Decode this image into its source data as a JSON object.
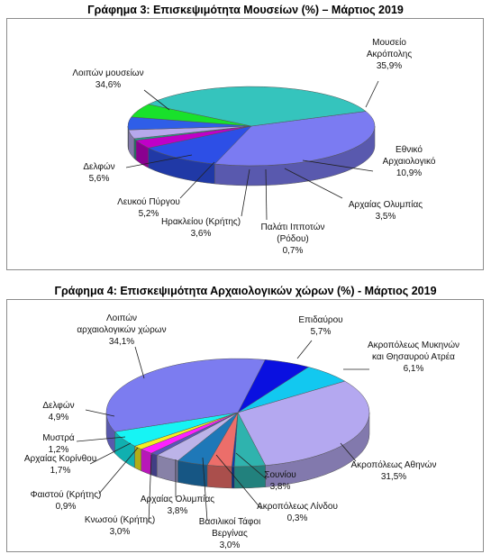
{
  "chart_data": [
    {
      "type": "pie",
      "title": "Γράφημα 3: Επισκεψιμότητα Μουσείων (%) – Μάρτιος 2019",
      "slices": [
        {
          "label": [
            "Μουσείο",
            "Ακρόπολης"
          ],
          "value": 35.9,
          "value_label": "35,9%",
          "color": "#7b7bf2"
        },
        {
          "label": [
            "Εθνικό",
            "Αρχαιολογικό"
          ],
          "value": 10.9,
          "value_label": "10,9%",
          "color": "#2d4fe6"
        },
        {
          "label": [
            "Αρχαίας Ολυμπίας"
          ],
          "value": 3.5,
          "value_label": "3,5%",
          "color": "#c000c8"
        },
        {
          "label": [
            "Παλάτι Ιπποτών",
            "(Ρόδου)"
          ],
          "value": 0.7,
          "value_label": "0,7%",
          "color": "#1fa58a"
        },
        {
          "label": [
            "Ηρακλείου (Κρήτης)"
          ],
          "value": 3.6,
          "value_label": "3,6%",
          "color": "#b6a8ec"
        },
        {
          "label": [
            "Λευκού Πύργου"
          ],
          "value": 5.2,
          "value_label": "5,2%",
          "color": "#2f5ee8"
        },
        {
          "label": [
            "Δελφών"
          ],
          "value": 5.6,
          "value_label": "5,6%",
          "color": "#19e12b"
        },
        {
          "label": [
            "Λοιπών μουσείων"
          ],
          "value": 34.6,
          "value_label": "34,6%",
          "color": "#35c4bd"
        }
      ]
    },
    {
      "type": "pie",
      "title": "Γράφημα 4: Επισκεψιμότητα Αρχαιολογικών χώρων (%) - Μάρτιος 2019",
      "slices": [
        {
          "label": [
            "Επιδαύρου"
          ],
          "value": 5.7,
          "value_label": "5,7%",
          "color": "#0a10e0"
        },
        {
          "label": [
            "Ακροπόλεως Μυκηνών",
            "και Θησαυρού Ατρέα"
          ],
          "value": 6.1,
          "value_label": "6,1%",
          "color": "#12c8f0"
        },
        {
          "label": [
            "Ακροπόλεως Αθηνών"
          ],
          "value": 31.5,
          "value_label": "31,5%",
          "color": "#b4a8f0"
        },
        {
          "label": [
            "Σουνίου"
          ],
          "value": 3.8,
          "value_label": "3,8%",
          "color": "#2fb3ae"
        },
        {
          "label": [
            "Ακροπόλεως Λίνδου"
          ],
          "value": 0.3,
          "value_label": "0,3%",
          "color": "#0b3fae"
        },
        {
          "label": [
            "Βασιλικοί Τάφοι",
            "Βεργίνας"
          ],
          "value": 3.0,
          "value_label": "3,0%",
          "color": "#ec6e6a"
        },
        {
          "label": [
            "Αρχαίας Ολυμπίας"
          ],
          "value": 3.8,
          "value_label": "3,8%",
          "color": "#1e78b8"
        },
        {
          "label": [
            "Κνωσού (Κρήτης)"
          ],
          "value": 3.0,
          "value_label": "3,0%",
          "color": "#bcb3e8"
        },
        {
          "label": [
            "Φαιστού (Κρήτης)"
          ],
          "value": 0.9,
          "value_label": "0,9%",
          "color": "#5a56b8"
        },
        {
          "label": [
            "Αρχαίας Κορίνθου"
          ],
          "value": 1.7,
          "value_label": "1,7%",
          "color": "#ff20ff"
        },
        {
          "label": [
            "Μυστρά"
          ],
          "value": 1.2,
          "value_label": "1,2%",
          "color": "#f4f020"
        },
        {
          "label": [
            "Δελφών"
          ],
          "value": 4.9,
          "value_label": "4,9%",
          "color": "#16f4f4"
        },
        {
          "label": [
            "Λοιπών",
            "αρχαιολογικών χώρων"
          ],
          "value": 34.1,
          "value_label": "34,1%",
          "color": "#7c7cf0"
        }
      ]
    }
  ]
}
